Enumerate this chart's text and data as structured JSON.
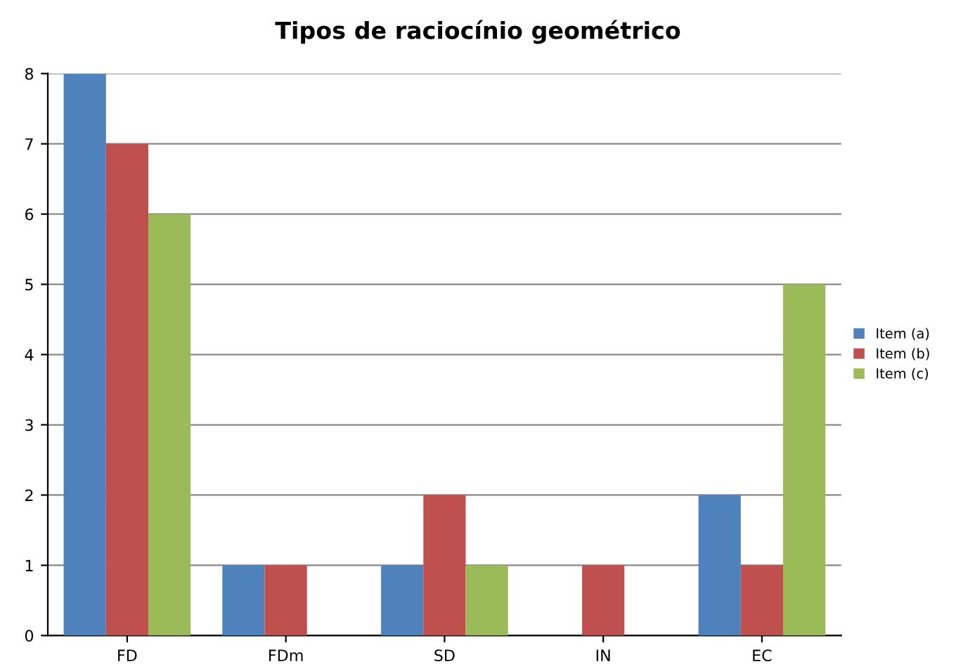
{
  "chart_data": {
    "type": "bar",
    "title": "Tipos de raciocínio geométrico",
    "categories": [
      "FD",
      "FDm",
      "SD",
      "IN",
      "EC"
    ],
    "series": [
      {
        "name": "Item (a)",
        "color": "#4f81bd",
        "values": [
          8,
          1,
          1,
          0,
          2
        ]
      },
      {
        "name": "Item (b)",
        "color": "#c0504d",
        "values": [
          7,
          1,
          2,
          1,
          1
        ]
      },
      {
        "name": "Item (c)",
        "color": "#9bbb59",
        "values": [
          6,
          0,
          1,
          0,
          5
        ]
      }
    ],
    "ylim": [
      0,
      8
    ],
    "yticks": [
      0,
      1,
      2,
      3,
      4,
      5,
      6,
      7,
      8
    ],
    "grid": "y",
    "legend": "right"
  }
}
